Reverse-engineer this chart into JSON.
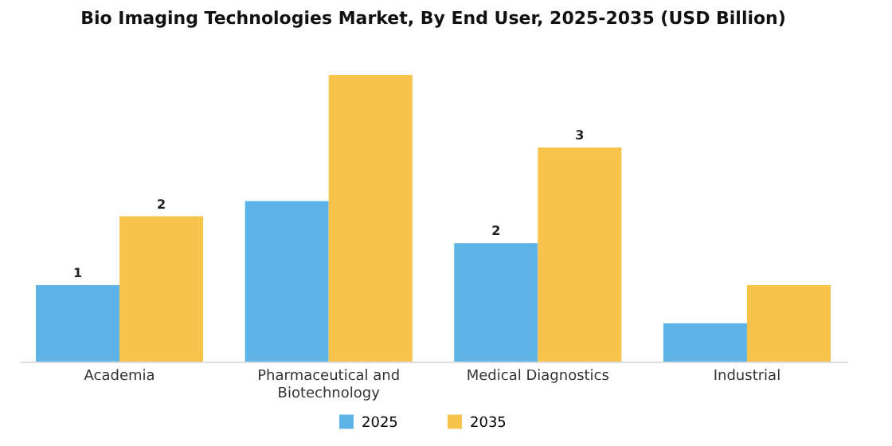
{
  "chart_data": {
    "type": "bar",
    "title": "Bio Imaging Technologies Market, By End User, 2025-2035 (USD Billion)",
    "categories": [
      "Academia",
      "Pharmaceutical and Biotechnology",
      "Medical Diagnostics",
      "Industrial"
    ],
    "series": [
      {
        "name": "2025",
        "color": "#5db3e6",
        "values": [
          1.0,
          2.1,
          1.55,
          0.5
        ],
        "value_labels": [
          "1",
          null,
          "2",
          null
        ]
      },
      {
        "name": "2035",
        "color": "#f7c34a",
        "values": [
          1.9,
          3.75,
          2.8,
          1.0
        ],
        "value_labels": [
          "2",
          null,
          "3",
          null
        ]
      }
    ],
    "legend": "bottom"
  }
}
